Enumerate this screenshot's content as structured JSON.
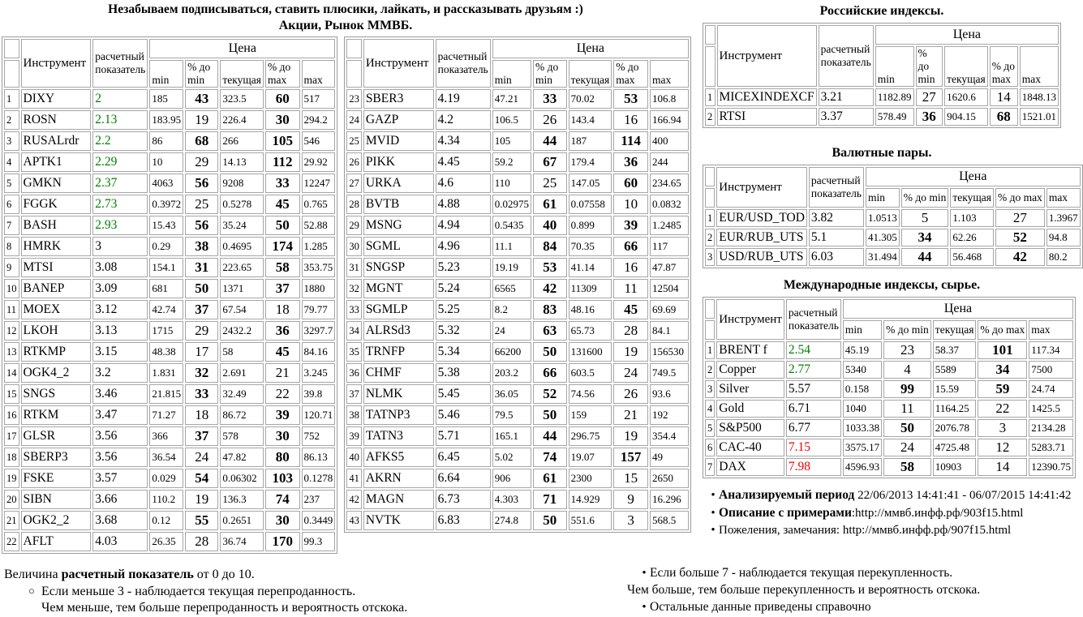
{
  "page_header": {
    "line1": "Незабываем подписываться, ставить плюсики, лайкать, и рассказывать друзьям :)",
    "line2": "Акции, Рынок ММВБ."
  },
  "cols": {
    "instrument": "Инструмент",
    "indicator": "расчетный показатель",
    "price": "Цена",
    "min": "min",
    "pct_min": "% до min",
    "current": "текущая",
    "pct_max": "% до max",
    "max": "max"
  },
  "sections": {
    "russian": "Российские индексы.",
    "currency": "Валютные пары.",
    "international": "Международные индексы, сырье."
  },
  "tables": {
    "stocks_left": [
      [
        1,
        "DIXY",
        "2",
        "185",
        43,
        "323.5",
        60,
        "517"
      ],
      [
        2,
        "ROSN",
        "2.13",
        "183.95",
        19,
        "226.4",
        30,
        "294.2"
      ],
      [
        3,
        "RUSALrdr",
        "2.2",
        "86",
        68,
        "266",
        105,
        "546"
      ],
      [
        4,
        "APTK1",
        "2.29",
        "10",
        29,
        "14.13",
        112,
        "29.92"
      ],
      [
        5,
        "GMKN",
        "2.37",
        "4063",
        56,
        "9208",
        33,
        "12247"
      ],
      [
        6,
        "FGGK",
        "2.73",
        "0.3972",
        25,
        "0.5278",
        45,
        "0.765"
      ],
      [
        7,
        "BASH",
        "2.93",
        "15.43",
        56,
        "35.24",
        50,
        "52.88"
      ],
      [
        8,
        "HMRK",
        "3",
        "0.29",
        38,
        "0.4695",
        174,
        "1.285"
      ],
      [
        9,
        "MTSI",
        "3.08",
        "154.1",
        31,
        "223.65",
        58,
        "353.75"
      ],
      [
        10,
        "BANEP",
        "3.09",
        "681",
        50,
        "1371",
        37,
        "1880"
      ],
      [
        11,
        "MOEX",
        "3.12",
        "42.74",
        37,
        "67.54",
        18,
        "79.77"
      ],
      [
        12,
        "LKOH",
        "3.13",
        "1715",
        29,
        "2432.2",
        36,
        "3297.7"
      ],
      [
        13,
        "RTKMP",
        "3.15",
        "48.38",
        17,
        "58",
        45,
        "84.16"
      ],
      [
        14,
        "OGK4_2",
        "3.2",
        "1.831",
        32,
        "2.691",
        21,
        "3.245"
      ],
      [
        15,
        "SNGS",
        "3.46",
        "21.815",
        33,
        "32.49",
        22,
        "39.8"
      ],
      [
        16,
        "RTKM",
        "3.47",
        "71.27",
        18,
        "86.72",
        39,
        "120.71"
      ],
      [
        17,
        "GLSR",
        "3.56",
        "366",
        37,
        "578",
        30,
        "752"
      ],
      [
        18,
        "SBERP3",
        "3.56",
        "36.54",
        24,
        "47.82",
        80,
        "86.13"
      ],
      [
        19,
        "FSKE",
        "3.57",
        "0.029",
        54,
        "0.06302",
        103,
        "0.1278"
      ],
      [
        20,
        "SIBN",
        "3.66",
        "110.2",
        19,
        "136.3",
        74,
        "237"
      ],
      [
        21,
        "OGK2_2",
        "3.68",
        "0.12",
        55,
        "0.2651",
        30,
        "0.3449"
      ],
      [
        22,
        "AFLT",
        "4.03",
        "26.35",
        28,
        "36.74",
        170,
        "99.3"
      ]
    ],
    "stocks_right": [
      [
        23,
        "SBER3",
        "4.19",
        "47.21",
        33,
        "70.02",
        53,
        "106.8"
      ],
      [
        24,
        "GAZP",
        "4.2",
        "106.5",
        26,
        "143.4",
        16,
        "166.94"
      ],
      [
        25,
        "MVID",
        "4.34",
        "105",
        44,
        "187",
        114,
        "400"
      ],
      [
        26,
        "PIKK",
        "4.45",
        "59.2",
        67,
        "179.4",
        36,
        "244"
      ],
      [
        27,
        "URKA",
        "4.6",
        "110",
        25,
        "147.05",
        60,
        "234.65"
      ],
      [
        28,
        "BVTB",
        "4.88",
        "0.02975",
        61,
        "0.07558",
        10,
        "0.0832"
      ],
      [
        29,
        "MSNG",
        "4.94",
        "0.5435",
        40,
        "0.899",
        39,
        "1.2485"
      ],
      [
        30,
        "SGML",
        "4.96",
        "11.1",
        84,
        "70.35",
        66,
        "117"
      ],
      [
        31,
        "SNGSP",
        "5.23",
        "19.19",
        53,
        "41.14",
        16,
        "47.87"
      ],
      [
        32,
        "MGNT",
        "5.24",
        "6565",
        42,
        "11309",
        11,
        "12504"
      ],
      [
        33,
        "SGMLP",
        "5.25",
        "8.2",
        83,
        "48.16",
        45,
        "69.69"
      ],
      [
        34,
        "ALRSd3",
        "5.32",
        "24",
        63,
        "65.73",
        28,
        "84.1"
      ],
      [
        35,
        "TRNFP",
        "5.34",
        "66200",
        50,
        "131600",
        19,
        "156530"
      ],
      [
        36,
        "CHMF",
        "5.38",
        "203.2",
        66,
        "603.5",
        24,
        "749.5"
      ],
      [
        37,
        "NLMK",
        "5.45",
        "36.05",
        52,
        "74.56",
        26,
        "93.6"
      ],
      [
        38,
        "TATNP3",
        "5.46",
        "79.5",
        50,
        "159",
        21,
        "192"
      ],
      [
        39,
        "TATN3",
        "5.71",
        "165.1",
        44,
        "296.75",
        19,
        "354.4"
      ],
      [
        40,
        "AFKS5",
        "6.45",
        "5.02",
        74,
        "19.07",
        157,
        "49"
      ],
      [
        41,
        "AKRN",
        "6.64",
        "906",
        61,
        "2300",
        15,
        "2650"
      ],
      [
        42,
        "MAGN",
        "6.73",
        "4.303",
        71,
        "14.929",
        9,
        "16.296"
      ],
      [
        43,
        "NVTK",
        "6.83",
        "274.8",
        50,
        "551.6",
        3,
        "568.5"
      ]
    ],
    "russian_indices": [
      [
        1,
        "MICEXINDEXCF",
        "3.21",
        "1182.89",
        27,
        "1620.6",
        14,
        "1848.13"
      ],
      [
        2,
        "RTSI",
        "3.37",
        "578.49",
        36,
        "904.15",
        68,
        "1521.01"
      ]
    ],
    "currency_pairs": [
      [
        1,
        "EUR/USD_TOD",
        "3.82",
        "1.0513",
        5,
        "1.103",
        27,
        "1.3967"
      ],
      [
        2,
        "EUR/RUB_UTS",
        "5.1",
        "41.305",
        34,
        "62.26",
        52,
        "94.8"
      ],
      [
        3,
        "USD/RUB_UTS",
        "6.03",
        "31.494",
        44,
        "56.468",
        42,
        "80.2"
      ]
    ],
    "international": [
      [
        1,
        "BRENT f",
        "2.54",
        "45.19",
        23,
        "58.37",
        101,
        "117.34"
      ],
      [
        2,
        "Copper",
        "2.77",
        "5340",
        4,
        "5589",
        34,
        "7500"
      ],
      [
        3,
        "Silver",
        "5.57",
        "0.158",
        99,
        "15.59",
        59,
        "24.74"
      ],
      [
        4,
        "Gold",
        "6.71",
        "1040",
        11,
        "1164.25",
        22,
        "1425.5"
      ],
      [
        5,
        "S&P500",
        "6.77",
        "1033.38",
        50,
        "2076.78",
        3,
        "2134.28"
      ],
      [
        6,
        "CAC-40",
        "7.15",
        "3575.17",
        24,
        "4725.48",
        12,
        "5283.71"
      ],
      [
        7,
        "DAX",
        "7.98",
        "4596.93",
        58,
        "10903",
        14,
        "12390.75"
      ]
    ]
  },
  "info": {
    "period_label": "Анализируемый период",
    "period_value": " 22/06/2013 14:41:41 - 06/07/2015 14:41:42",
    "desc_label": "Описание с примерами",
    "desc_value": ":http://ммвб.инфф.рф/903f15.html",
    "feedback": "Пожеления, замечания: http://ммвб.инфф.рф/907f15.html"
  },
  "left_footer": {
    "prefix": "Величина ",
    "bold": "расчетный показатель",
    "suffix": " от 0 до 10.",
    "bullet": "Если меньше 3 - наблюдается текущая перепроданность.",
    "cont": "Чем меньше, тем больше перепроданность и вероятность отскока."
  },
  "right_footer": {
    "bullet1": "Если больше 7 - наблюдается текущая перекупленность.",
    "cont": "Чем больше, тем больше перекупленность и вероятность отскока.",
    "bullet2": "Остальные данные приведены справочно"
  },
  "icons": {
    "bullet": "•",
    "circle_bullet": "○"
  },
  "rules": {
    "pct_bold_threshold": 30,
    "indicator_green_below": 3,
    "indicator_red_above": 7
  },
  "colors": {
    "indicator_low": "#008000",
    "indicator_high": "#ee0000",
    "table_border": "#a0a0a0"
  }
}
